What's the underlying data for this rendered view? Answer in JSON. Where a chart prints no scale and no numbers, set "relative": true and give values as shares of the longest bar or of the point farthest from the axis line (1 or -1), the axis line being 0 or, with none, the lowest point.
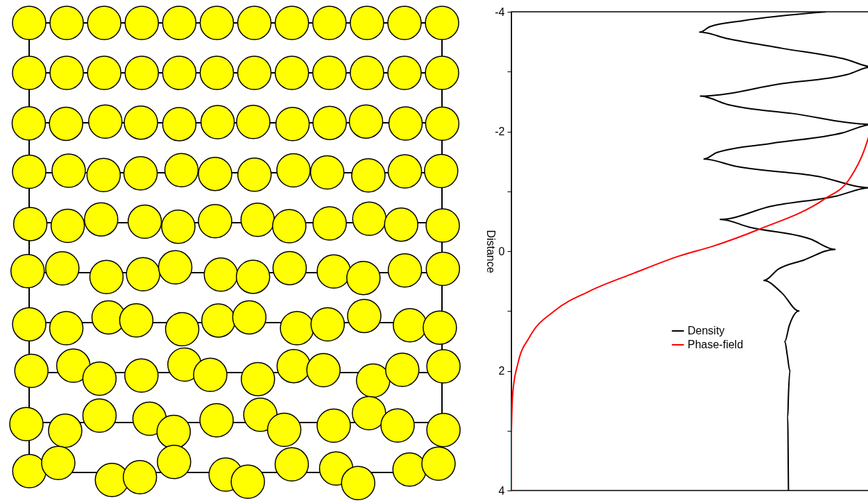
{
  "chart_data": {
    "type": "line",
    "orientation": "horizontal",
    "relative": true,
    "ylabel": "Distance",
    "ylim": [
      4,
      -4
    ],
    "yticks": [
      -4,
      {
        "value": -3,
        "label": null
      },
      -2,
      {
        "value": -1,
        "label": null
      },
      0,
      {
        "value": 1,
        "label": null
      },
      2,
      {
        "value": 3,
        "label": null
      },
      4
    ],
    "legend": "bottom",
    "line_style": "solid",
    "marker": "none",
    "grid": false,
    "series": [
      {
        "name": "Density",
        "color": "#000000",
        "x": [
          -4,
          -3.85,
          -3.75,
          -3.66,
          -3.55,
          -3.39,
          -3.2,
          -3.08,
          -2.95,
          -2.8,
          -2.59,
          -2.45,
          -2.3,
          -2.12,
          -1.98,
          -1.8,
          -1.65,
          -1.54,
          -1.42,
          -1.25,
          -1.06,
          -0.92,
          -0.75,
          -0.53,
          -0.4,
          -0.2,
          -0.03,
          0.15,
          0.3,
          0.49,
          0.7,
          1.0,
          1.25,
          1.51,
          1.75,
          2.0,
          2.4,
          2.77,
          3.3,
          4
        ],
        "values": [
          0.873,
          0.64,
          0.55,
          0.522,
          0.6,
          0.75,
          0.93,
          1.0,
          0.93,
          0.75,
          0.524,
          0.6,
          0.78,
          1.0,
          0.92,
          0.72,
          0.57,
          0.534,
          0.62,
          0.85,
          0.994,
          0.9,
          0.72,
          0.579,
          0.66,
          0.83,
          0.897,
          0.81,
          0.74,
          0.7,
          0.75,
          0.797,
          0.77,
          0.758,
          0.765,
          0.772,
          0.768,
          0.766,
          0.767,
          0.768
        ]
      },
      {
        "name": "Phase-field",
        "color": "#ff0000",
        "x": [
          -2.1,
          -1.67,
          -1.18,
          -0.88,
          -0.36,
          -0.08,
          0.08,
          0.37,
          0.67,
          1.0,
          1.43,
          1.88,
          2.36,
          3.06,
          4
        ],
        "values": [
          1.0,
          0.977,
          0.934,
          0.87,
          0.684,
          0.557,
          0.466,
          0.339,
          0.216,
          0.119,
          0.051,
          0.018,
          0.004,
          0,
          0
        ]
      }
    ]
  }
}
